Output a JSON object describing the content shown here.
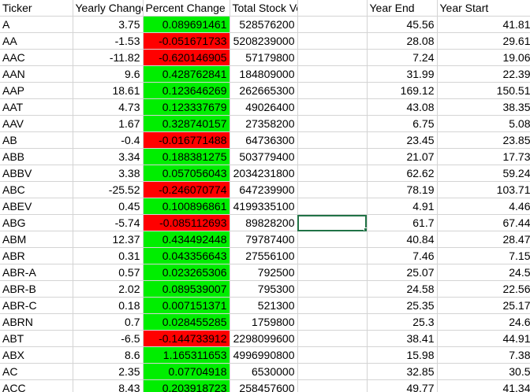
{
  "headers": [
    "Ticker",
    "Yearly Change",
    "Percent Change",
    "Total Stock Volume",
    "",
    "Year End",
    "Year Start"
  ],
  "colors": {
    "positive": "#00ee00",
    "negative": "#ff0000",
    "gridline": "#d4d4d4",
    "selection": "#217346"
  },
  "selected_cell": {
    "row": 12,
    "col": 4
  },
  "rows": [
    [
      "A",
      "3.75",
      "0.089691461",
      "528576200",
      "",
      "45.56",
      "41.81"
    ],
    [
      "AA",
      "-1.53",
      "-0.051671733",
      "5208239000",
      "",
      "28.08",
      "29.61"
    ],
    [
      "AAC",
      "-11.82",
      "-0.620146905",
      "57179800",
      "",
      "7.24",
      "19.06"
    ],
    [
      "AAN",
      "9.6",
      "0.428762841",
      "184809000",
      "",
      "31.99",
      "22.39"
    ],
    [
      "AAP",
      "18.61",
      "0.123646269",
      "262665300",
      "",
      "169.12",
      "150.51"
    ],
    [
      "AAT",
      "4.73",
      "0.123337679",
      "49026400",
      "",
      "43.08",
      "38.35"
    ],
    [
      "AAV",
      "1.67",
      "0.328740157",
      "27358200",
      "",
      "6.75",
      "5.08"
    ],
    [
      "AB",
      "-0.4",
      "-0.016771488",
      "64736300",
      "",
      "23.45",
      "23.85"
    ],
    [
      "ABB",
      "3.34",
      "0.188381275",
      "503779400",
      "",
      "21.07",
      "17.73"
    ],
    [
      "ABBV",
      "3.38",
      "0.057056043",
      "2034231800",
      "",
      "62.62",
      "59.24"
    ],
    [
      "ABC",
      "-25.52",
      "-0.246070774",
      "647239900",
      "",
      "78.19",
      "103.71"
    ],
    [
      "ABEV",
      "0.45",
      "0.100896861",
      "4199335100",
      "",
      "4.91",
      "4.46"
    ],
    [
      "ABG",
      "-5.74",
      "-0.085112693",
      "89828200",
      "",
      "61.7",
      "67.44"
    ],
    [
      "ABM",
      "12.37",
      "0.434492448",
      "79787400",
      "",
      "40.84",
      "28.47"
    ],
    [
      "ABR",
      "0.31",
      "0.043356643",
      "27556100",
      "",
      "7.46",
      "7.15"
    ],
    [
      "ABR-A",
      "0.57",
      "0.023265306",
      "792500",
      "",
      "25.07",
      "24.5"
    ],
    [
      "ABR-B",
      "2.02",
      "0.089539007",
      "795300",
      "",
      "24.58",
      "22.56"
    ],
    [
      "ABR-C",
      "0.18",
      "0.007151371",
      "521300",
      "",
      "25.35",
      "25.17"
    ],
    [
      "ABRN",
      "0.7",
      "0.028455285",
      "1759800",
      "",
      "25.3",
      "24.6"
    ],
    [
      "ABT",
      "-6.5",
      "-0.144733912",
      "2298099600",
      "",
      "38.41",
      "44.91"
    ],
    [
      "ABX",
      "8.6",
      "1.165311653",
      "4996990800",
      "",
      "15.98",
      "7.38"
    ],
    [
      "AC",
      "2.35",
      "0.07704918",
      "6530000",
      "",
      "32.85",
      "30.5"
    ],
    [
      "ACC",
      "8.43",
      "0.203918723",
      "258457600",
      "",
      "49.77",
      "41.34"
    ]
  ]
}
